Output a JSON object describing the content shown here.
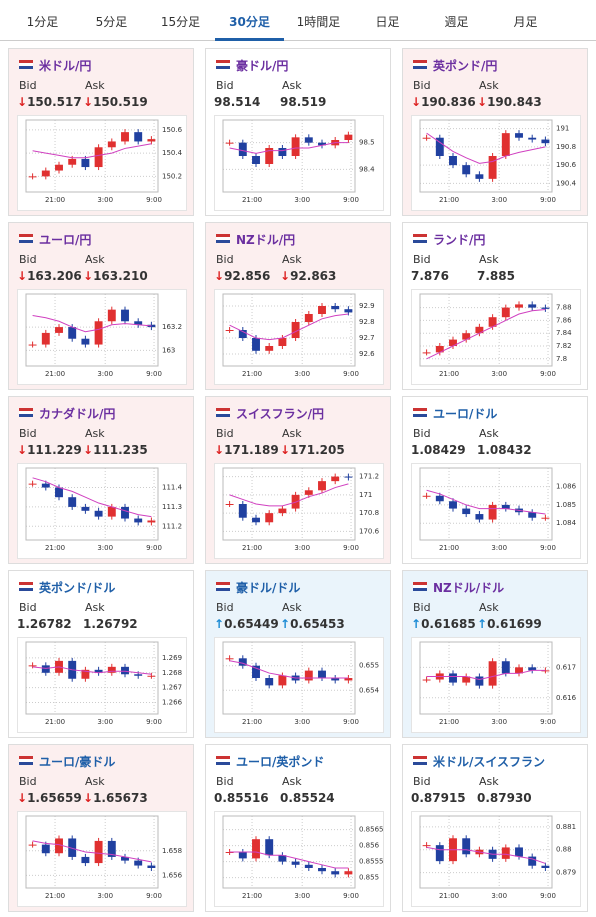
{
  "tabs": [
    "1分足",
    "5分足",
    "15分足",
    "30分足",
    "1時間足",
    "日足",
    "週足",
    "月足"
  ],
  "active_tab": 3,
  "bid_label": "Bid",
  "ask_label": "Ask",
  "time_labels": [
    "21:00",
    "3:00",
    "9:00"
  ],
  "panels": [
    {
      "title": "米ドル/円",
      "title_color": "#6b2fa0",
      "trend": "down",
      "arrow": "↓",
      "bid": "150.517",
      "ask": "150.519",
      "ylim": [
        150.1,
        150.65
      ],
      "yticks": [
        150.2,
        150.4,
        150.6
      ],
      "prices": [
        150.2,
        150.25,
        150.3,
        150.35,
        150.28,
        150.45,
        150.5,
        150.58,
        150.5,
        150.52
      ],
      "ma": [
        150.42,
        150.4,
        150.38,
        150.36,
        150.36,
        150.38,
        150.4,
        150.44,
        150.46,
        150.48
      ]
    },
    {
      "title": "豪ドル/円",
      "title_color": "#6b2fa0",
      "trend": "none",
      "bid": "98.514",
      "ask": "98.519",
      "ylim": [
        98.33,
        98.57
      ],
      "yticks": [
        98.4,
        98.5
      ],
      "prices": [
        98.5,
        98.45,
        98.42,
        98.48,
        98.45,
        98.52,
        98.5,
        98.49,
        98.51,
        98.53
      ],
      "ma": [
        98.48,
        98.47,
        98.46,
        98.47,
        98.47,
        98.48,
        98.48,
        98.49,
        98.5,
        98.5
      ]
    },
    {
      "title": "英ポンド/円",
      "title_color": "#6b2fa0",
      "trend": "down",
      "arrow": "↓",
      "bid": "190.836",
      "ask": "190.843",
      "ylim": [
        190.35,
        191.05
      ],
      "yticks": [
        190.4,
        190.6,
        190.8,
        191
      ],
      "prices": [
        190.9,
        190.7,
        190.6,
        190.5,
        190.45,
        190.7,
        190.95,
        190.9,
        190.88,
        190.84
      ],
      "ma": [
        190.95,
        190.85,
        190.75,
        190.68,
        190.62,
        190.64,
        190.7,
        190.74,
        190.77,
        190.8
      ]
    },
    {
      "title": "ユーロ/円",
      "title_color": "#6b2fa0",
      "trend": "down",
      "arrow": "↓",
      "bid": "163.206",
      "ask": "163.210",
      "ylim": [
        162.9,
        163.45
      ],
      "yticks": [
        163,
        163.2
      ],
      "prices": [
        163.05,
        163.15,
        163.2,
        163.1,
        163.05,
        163.25,
        163.35,
        163.25,
        163.22,
        163.2
      ],
      "ma": [
        163.3,
        163.28,
        163.25,
        163.2,
        163.16,
        163.18,
        163.22,
        163.23,
        163.22,
        163.21
      ]
    },
    {
      "title": "NZドル/円",
      "title_color": "#6b2fa0",
      "trend": "down",
      "arrow": "↓",
      "bid": "92.856",
      "ask": "92.863",
      "ylim": [
        92.55,
        92.95
      ],
      "yticks": [
        92.6,
        92.7,
        92.8,
        92.9
      ],
      "prices": [
        92.75,
        92.7,
        92.62,
        92.65,
        92.7,
        92.8,
        92.85,
        92.9,
        92.88,
        92.86
      ],
      "ma": [
        92.78,
        92.74,
        92.7,
        92.69,
        92.7,
        92.74,
        92.78,
        92.82,
        92.84,
        92.85
      ]
    },
    {
      "title": "ランド/円",
      "title_color": "#6b2fa0",
      "trend": "none",
      "bid": "7.876",
      "ask": "7.885",
      "ylim": [
        7.795,
        7.895
      ],
      "yticks": [
        7.8,
        7.82,
        7.84,
        7.86,
        7.88
      ],
      "prices": [
        7.81,
        7.82,
        7.83,
        7.84,
        7.85,
        7.865,
        7.88,
        7.885,
        7.88,
        7.878
      ],
      "ma": [
        7.8,
        7.81,
        7.82,
        7.83,
        7.84,
        7.85,
        7.86,
        7.87,
        7.875,
        7.877
      ]
    },
    {
      "title": "カナダドル/円",
      "title_color": "#6b2fa0",
      "trend": "down",
      "arrow": "↓",
      "bid": "111.229",
      "ask": "111.235",
      "ylim": [
        111.15,
        111.48
      ],
      "yticks": [
        111.2,
        111.3,
        111.4
      ],
      "prices": [
        111.42,
        111.4,
        111.35,
        111.3,
        111.28,
        111.25,
        111.3,
        111.24,
        111.22,
        111.23
      ],
      "ma": [
        111.45,
        111.43,
        111.4,
        111.38,
        111.35,
        111.32,
        111.3,
        111.28,
        111.26,
        111.25
      ]
    },
    {
      "title": "スイスフラン/円",
      "title_color": "#6b2fa0",
      "trend": "down",
      "arrow": "↓",
      "bid": "171.189",
      "ask": "171.205",
      "ylim": [
        170.55,
        171.25
      ],
      "yticks": [
        170.6,
        170.8,
        171,
        171.2
      ],
      "prices": [
        170.9,
        170.75,
        170.7,
        170.8,
        170.85,
        171,
        171.05,
        171.15,
        171.2,
        171.19
      ],
      "ma": [
        171,
        170.95,
        170.9,
        170.88,
        170.88,
        170.92,
        170.98,
        171.02,
        171.08,
        171.12
      ]
    },
    {
      "title": "ユーロ/ドル",
      "title_color": "#1f5fa8",
      "trend": "none",
      "bid": "1.08429",
      "ask": "1.08432",
      "ylim": [
        1.0833,
        1.0868
      ],
      "yticks": [
        1.084,
        1.085,
        1.086
      ],
      "prices": [
        1.0855,
        1.0852,
        1.0848,
        1.0845,
        1.0842,
        1.085,
        1.0848,
        1.0846,
        1.0843,
        1.0843
      ],
      "ma": [
        1.0858,
        1.0856,
        1.0853,
        1.085,
        1.0848,
        1.0848,
        1.0848,
        1.0847,
        1.0846,
        1.0845
      ]
    },
    {
      "title": "英ポンド/ドル",
      "title_color": "#1f5fa8",
      "trend": "none",
      "bid": "1.26782",
      "ask": "1.26792",
      "ylim": [
        1.2655,
        1.2698
      ],
      "yticks": [
        1.266,
        1.267,
        1.268,
        1.269
      ],
      "prices": [
        1.2685,
        1.268,
        1.2688,
        1.2676,
        1.2682,
        1.268,
        1.2684,
        1.2679,
        1.2678,
        1.2678
      ],
      "ma": [
        1.2684,
        1.2683,
        1.2684,
        1.2682,
        1.2681,
        1.268,
        1.2681,
        1.2681,
        1.268,
        1.2679
      ]
    },
    {
      "title": "豪ドル/ドル",
      "title_color": "#1f5fa8",
      "trend": "up",
      "arrow": "↑",
      "bid": "0.65449",
      "ask": "0.65453",
      "ylim": [
        0.6532,
        0.6558
      ],
      "yticks": [
        0.654,
        0.655
      ],
      "prices": [
        0.6553,
        0.655,
        0.6545,
        0.6542,
        0.6546,
        0.6544,
        0.6548,
        0.6545,
        0.6544,
        0.6545
      ],
      "ma": [
        0.6552,
        0.6551,
        0.6549,
        0.6547,
        0.6546,
        0.6545,
        0.6545,
        0.6545,
        0.6545,
        0.6545
      ]
    },
    {
      "title": "NZドル/ドル",
      "title_color": "#6b2fa0",
      "trend": "up",
      "arrow": "↑",
      "bid": "0.61685",
      "ask": "0.61699",
      "ylim": [
        0.6156,
        0.6177
      ],
      "yticks": [
        0.616,
        0.617
      ],
      "prices": [
        0.6166,
        0.6168,
        0.6165,
        0.6167,
        0.6164,
        0.6172,
        0.6168,
        0.617,
        0.6169,
        0.6169
      ],
      "ma": [
        0.6167,
        0.6167,
        0.6167,
        0.6167,
        0.6166,
        0.6167,
        0.6168,
        0.6168,
        0.6169,
        0.6169
      ]
    },
    {
      "title": "ユーロ/豪ドル",
      "title_color": "#1f5fa8",
      "trend": "down",
      "arrow": "↓",
      "bid": "1.65659",
      "ask": "1.65673",
      "ylim": [
        1.6553,
        1.6605
      ],
      "yticks": [
        1.656,
        1.658
      ],
      "prices": [
        1.6585,
        1.6578,
        1.659,
        1.6575,
        1.657,
        1.6588,
        1.6575,
        1.6572,
        1.6568,
        1.6566
      ],
      "ma": [
        1.6588,
        1.6586,
        1.6585,
        1.6582,
        1.6579,
        1.6578,
        1.6577,
        1.6575,
        1.6573,
        1.6571
      ]
    },
    {
      "title": "ユーロ/英ポンド",
      "title_color": "#1f5fa8",
      "trend": "none",
      "bid": "0.85516",
      "ask": "0.85524",
      "ylim": [
        0.8548,
        0.8568
      ],
      "yticks": [
        0.855,
        0.8555,
        0.856,
        0.8565
      ],
      "prices": [
        0.8558,
        0.8556,
        0.8562,
        0.8557,
        0.8555,
        0.8554,
        0.8553,
        0.8552,
        0.8551,
        0.8552
      ],
      "ma": [
        0.8558,
        0.8558,
        0.8558,
        0.8557,
        0.8557,
        0.8556,
        0.8555,
        0.8554,
        0.8553,
        0.8553
      ]
    },
    {
      "title": "米ドル/スイスフラン",
      "title_color": "#1f5fa8",
      "trend": "none",
      "bid": "0.87915",
      "ask": "0.87930",
      "ylim": [
        0.8785,
        0.8813
      ],
      "yticks": [
        0.879,
        0.88,
        0.881
      ],
      "prices": [
        0.8802,
        0.8795,
        0.8805,
        0.8798,
        0.88,
        0.8796,
        0.8801,
        0.8797,
        0.8793,
        0.8792
      ],
      "ma": [
        0.8801,
        0.88,
        0.88,
        0.88,
        0.8799,
        0.8798,
        0.8798,
        0.8797,
        0.8796,
        0.8794
      ]
    }
  ]
}
